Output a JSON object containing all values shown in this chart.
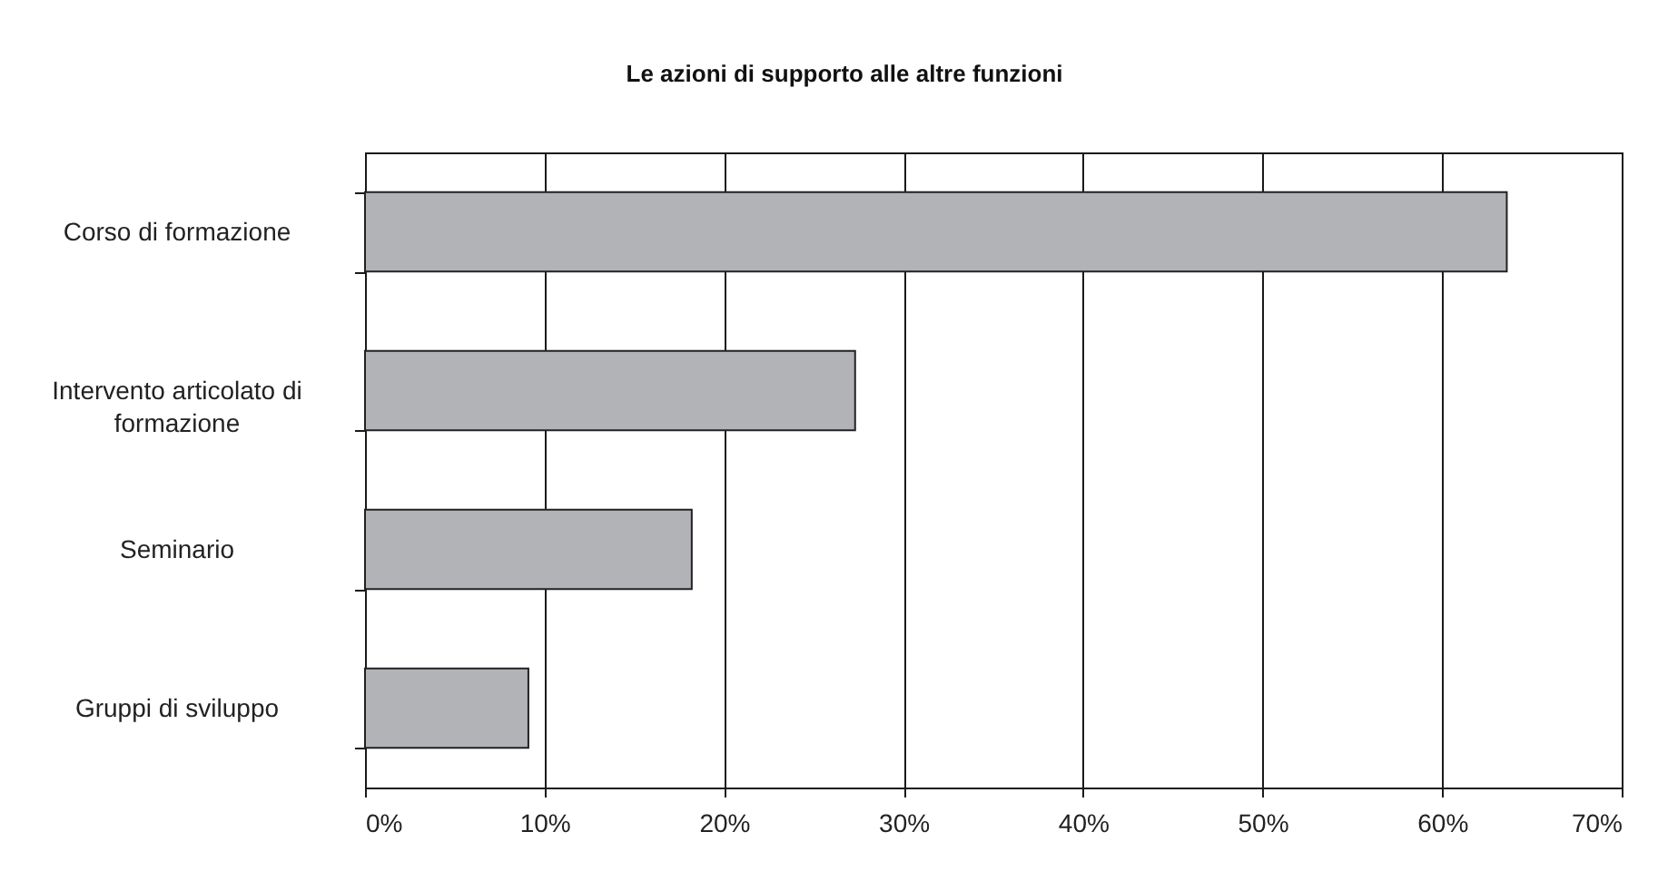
{
  "chart_data": {
    "type": "bar",
    "orientation": "horizontal",
    "title": "Le azioni di supporto alle altre funzioni",
    "categories": [
      "Corso di formazione",
      "Intervento articolato di formazione",
      "Seminario",
      "Gruppi di sviluppo"
    ],
    "values": [
      63.6,
      27.3,
      18.2,
      9.1
    ],
    "color": "#b2b3b7",
    "xlim": [
      0,
      70
    ],
    "xticks": [
      {
        "value": 0,
        "label": "0%"
      },
      {
        "value": 10,
        "label": "10%"
      },
      {
        "value": 20,
        "label": "20%"
      },
      {
        "value": 30,
        "label": "30%"
      },
      {
        "value": 40,
        "label": "40%"
      },
      {
        "value": 50,
        "label": "50%"
      },
      {
        "value": 60,
        "label": "60%"
      },
      {
        "value": 70,
        "label": "70%"
      }
    ],
    "grid": "x"
  }
}
